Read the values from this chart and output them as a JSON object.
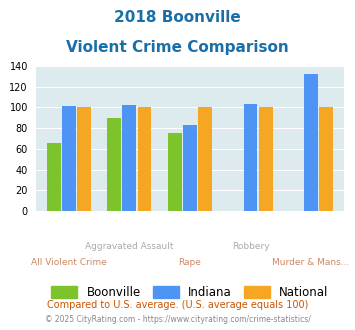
{
  "title_line1": "2018 Boonville",
  "title_line2": "Violent Crime Comparison",
  "categories": [
    "All Violent Crime",
    "Aggravated Assault",
    "Rape",
    "Robbery",
    "Murder & Mans..."
  ],
  "series": {
    "Boonville": [
      66,
      90,
      75,
      0,
      0
    ],
    "Indiana": [
      101,
      102,
      83,
      103,
      132
    ],
    "National": [
      100,
      100,
      100,
      100,
      100
    ]
  },
  "colors": {
    "Boonville": "#7dc32b",
    "Indiana": "#4d94f5",
    "National": "#f5a623"
  },
  "ylim": [
    0,
    140
  ],
  "yticks": [
    0,
    20,
    40,
    60,
    80,
    100,
    120,
    140
  ],
  "footnote1": "Compared to U.S. average. (U.S. average equals 100)",
  "footnote2": "© 2025 CityRating.com - https://www.cityrating.com/crime-statistics/",
  "plot_bg": "#ddeaee",
  "title_color": "#1a6fa8",
  "footnote1_color": "#cc5500",
  "footnote2_color": "#888888",
  "xlabel_color": "#aaaaaa",
  "xlabel_color2": "#cc8866"
}
